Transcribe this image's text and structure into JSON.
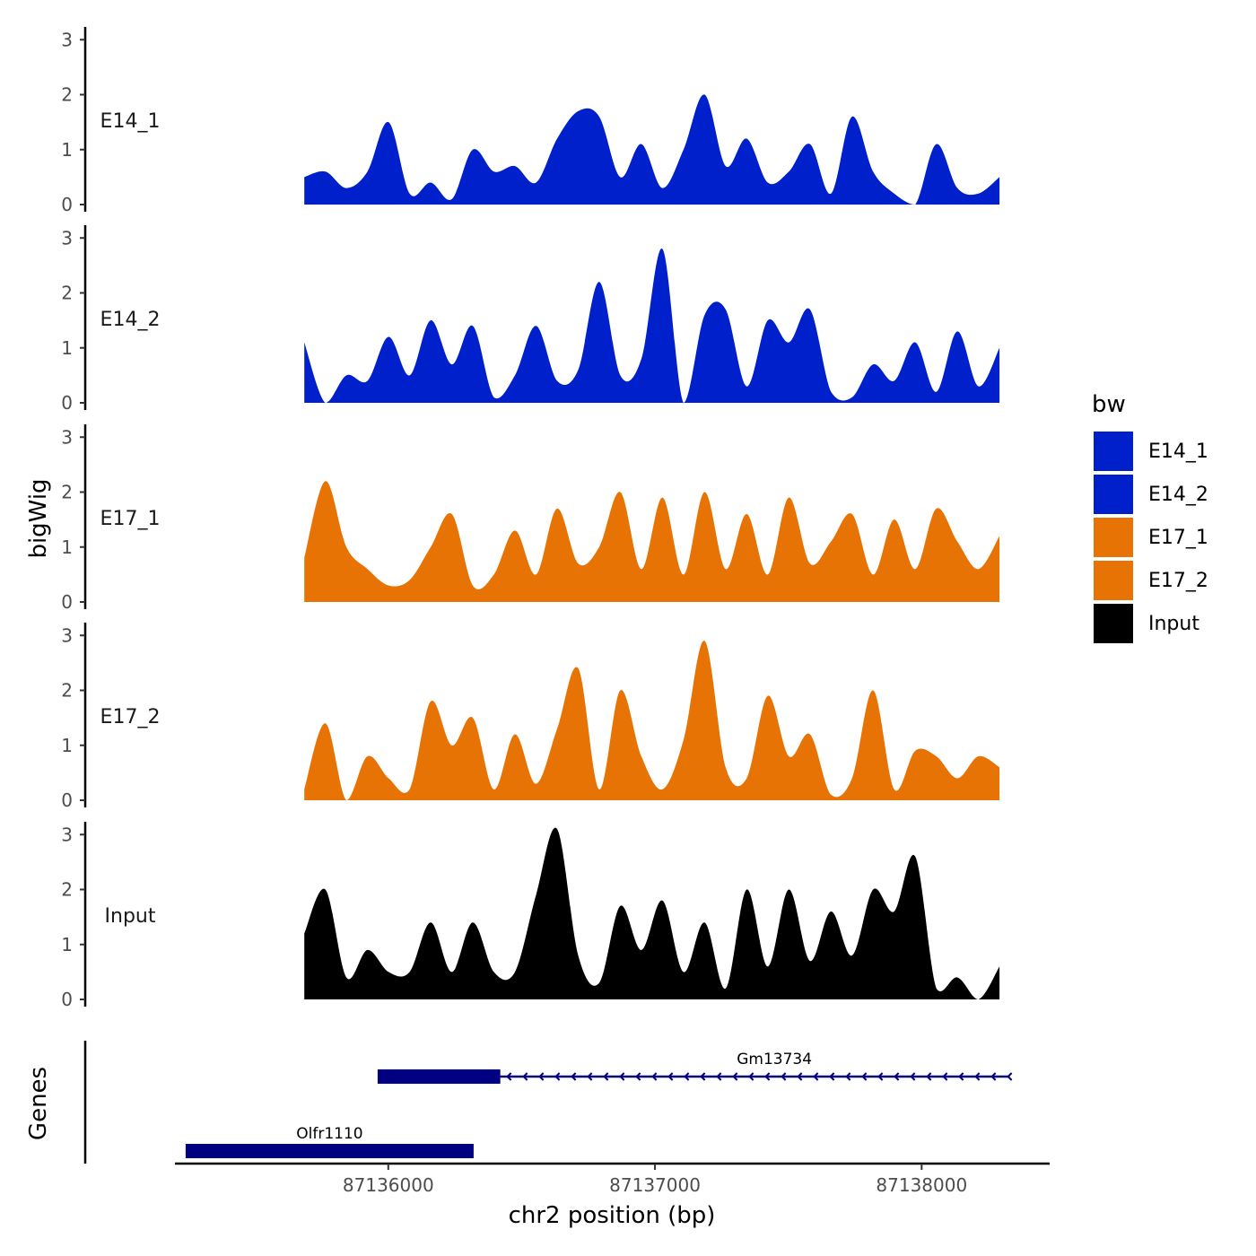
{
  "chart_data": {
    "type": "area",
    "xlabel": "chr2 position (bp)",
    "ylabel": "bigWig",
    "genes_label": "Genes",
    "xlim": [
      87135200,
      87138480
    ],
    "x_ticks": [
      87136000,
      87137000,
      87138000
    ],
    "x_tick_labels": [
      "87136000",
      "87137000",
      "87138000"
    ],
    "ylim": [
      0,
      3.2
    ],
    "y_ticks": [
      0,
      1,
      2,
      3
    ],
    "y_tick_labels": [
      "0",
      "1",
      "2",
      "3"
    ],
    "legend": {
      "title": "bw",
      "position": "right",
      "entries": [
        {
          "label": "E14_1",
          "color": "#0020CC"
        },
        {
          "label": "E14_2",
          "color": "#0020CC"
        },
        {
          "label": "E17_1",
          "color": "#E87305"
        },
        {
          "label": "E17_2",
          "color": "#E87305"
        },
        {
          "label": "Input",
          "color": "#000000"
        }
      ]
    },
    "x": [
      87135685,
      87135764,
      87135843,
      87135922,
      87136001,
      87136080,
      87136159,
      87136238,
      87136317,
      87136396,
      87136475,
      87136554,
      87136633,
      87136712,
      87136791,
      87136870,
      87136949,
      87137028,
      87137107,
      87137186,
      87137265,
      87137344,
      87137423,
      87137502,
      87137581,
      87137660,
      87137739,
      87137818,
      87137897,
      87137976,
      87138055,
      87138134,
      87138213,
      87138292
    ],
    "series": [
      {
        "name": "E14_1",
        "color": "#0020CC",
        "values": [
          0.5,
          0.6,
          0.3,
          0.6,
          1.5,
          0.2,
          0.4,
          0.1,
          1.0,
          0.6,
          0.7,
          0.4,
          1.2,
          1.7,
          1.6,
          0.5,
          1.1,
          0.3,
          1.0,
          2.0,
          0.7,
          1.2,
          0.4,
          0.6,
          1.1,
          0.2,
          1.6,
          0.6,
          0.2,
          0.0,
          1.1,
          0.3,
          0.2,
          0.5
        ]
      },
      {
        "name": "E14_2",
        "color": "#0020CC",
        "values": [
          1.1,
          0.0,
          0.5,
          0.4,
          1.2,
          0.5,
          1.5,
          0.7,
          1.4,
          0.1,
          0.5,
          1.4,
          0.4,
          0.6,
          2.2,
          0.5,
          0.8,
          2.8,
          0.0,
          1.6,
          1.7,
          0.3,
          1.5,
          1.1,
          1.7,
          0.2,
          0.1,
          0.7,
          0.4,
          1.1,
          0.2,
          1.3,
          0.3,
          1.0
        ]
      },
      {
        "name": "E17_1",
        "color": "#E87305",
        "values": [
          0.8,
          2.2,
          1.0,
          0.6,
          0.3,
          0.4,
          1.0,
          1.6,
          0.3,
          0.5,
          1.3,
          0.5,
          1.7,
          0.7,
          1.0,
          2.0,
          0.6,
          1.9,
          0.5,
          2.0,
          0.6,
          1.6,
          0.5,
          1.9,
          0.7,
          1.1,
          1.6,
          0.5,
          1.5,
          0.6,
          1.7,
          1.1,
          0.6,
          1.2
        ]
      },
      {
        "name": "E17_2",
        "color": "#E87305",
        "values": [
          0.2,
          1.4,
          0.0,
          0.8,
          0.4,
          0.2,
          1.8,
          1.0,
          1.5,
          0.2,
          1.2,
          0.3,
          1.3,
          2.4,
          0.2,
          2.0,
          0.8,
          0.2,
          1.1,
          2.9,
          0.6,
          0.4,
          1.9,
          0.8,
          1.2,
          0.1,
          0.4,
          2.0,
          0.2,
          0.9,
          0.8,
          0.4,
          0.8,
          0.6
        ]
      },
      {
        "name": "Input",
        "color": "#000000",
        "values": [
          1.2,
          2.0,
          0.4,
          0.9,
          0.5,
          0.5,
          1.4,
          0.5,
          1.4,
          0.5,
          0.5,
          1.9,
          3.1,
          0.8,
          0.3,
          1.7,
          0.9,
          1.8,
          0.5,
          1.4,
          0.2,
          2.0,
          0.6,
          2.0,
          0.7,
          1.6,
          0.8,
          2.0,
          1.6,
          2.6,
          0.2,
          0.4,
          0.0,
          0.6
        ]
      }
    ],
    "genes": [
      {
        "name": "Olfr1110",
        "start": 87135240,
        "end": 87136320,
        "strand": "-",
        "row": 2
      },
      {
        "name": "Gm13734",
        "start": 87135960,
        "end": 87138330,
        "strand": "-",
        "thick_end": 87136420,
        "row": 1
      }
    ]
  }
}
